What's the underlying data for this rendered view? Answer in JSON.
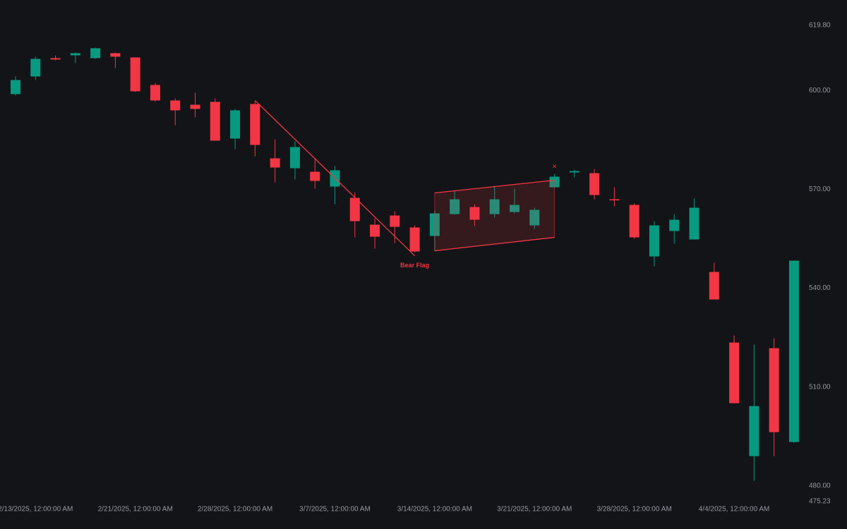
{
  "chart_data": {
    "type": "candlestick",
    "up_color": "#089981",
    "down_color": "#f23645",
    "x": [
      "2025-02-12",
      "2025-02-13",
      "2025-02-14",
      "2025-02-18",
      "2025-02-19",
      "2025-02-20",
      "2025-02-21",
      "2025-02-24",
      "2025-02-25",
      "2025-02-26",
      "2025-02-27",
      "2025-02-28",
      "2025-03-03",
      "2025-03-04",
      "2025-03-05",
      "2025-03-06",
      "2025-03-07",
      "2025-03-10",
      "2025-03-11",
      "2025-03-12",
      "2025-03-13",
      "2025-03-14",
      "2025-03-17",
      "2025-03-18",
      "2025-03-19",
      "2025-03-20",
      "2025-03-21",
      "2025-03-24",
      "2025-03-25",
      "2025-03-26",
      "2025-03-27",
      "2025-03-28",
      "2025-03-31",
      "2025-04-01",
      "2025-04-02",
      "2025-04-03",
      "2025-04-04",
      "2025-04-07",
      "2025-04-08",
      "2025-04-09"
    ],
    "open": [
      598.93,
      604.29,
      609.86,
      610.71,
      609.86,
      611.36,
      610.07,
      601.71,
      597.0,
      595.71,
      596.57,
      585.43,
      595.93,
      579.43,
      576.43,
      575.36,
      570.86,
      567.43,
      559.29,
      562.07,
      558.43,
      555.86,
      562.5,
      564.64,
      562.5,
      563.14,
      559.07,
      570.64,
      575.14,
      574.93,
      567.0,
      565.29,
      549.64,
      557.36,
      554.79,
      544.93,
      523.5,
      489.0,
      521.79,
      493.29
    ],
    "high": [
      604.29,
      610.29,
      610.71,
      611.57,
      613.07,
      611.57,
      610.07,
      602.36,
      597.64,
      599.36,
      597.64,
      594.43,
      596.79,
      585.21,
      584.57,
      579.21,
      577.07,
      569.14,
      561.21,
      563.36,
      559.07,
      563.57,
      569.57,
      565.5,
      571.07,
      570.21,
      564.43,
      574.71,
      576.0,
      576.21,
      570.64,
      565.71,
      560.36,
      562.5,
      567.21,
      547.71,
      525.64,
      522.86,
      524.79,
      548.36
    ],
    "low": [
      598.5,
      603.21,
      609.21,
      608.36,
      609.64,
      606.86,
      599.57,
      596.57,
      589.5,
      591.86,
      584.79,
      582.21,
      580.07,
      572.14,
      573.0,
      570.21,
      565.5,
      555.43,
      552.0,
      553.71,
      550.93,
      551.36,
      562.29,
      558.86,
      561.43,
      562.71,
      558.0,
      570.43,
      573.64,
      567.0,
      564.86,
      555.0,
      546.64,
      553.5,
      554.79,
      536.57,
      505.07,
      481.5,
      489.0,
      493.07
    ],
    "close": [
      603.21,
      609.64,
      609.43,
      611.36,
      612.86,
      610.29,
      599.79,
      597.0,
      594.0,
      594.43,
      584.79,
      594.0,
      583.5,
      576.64,
      582.86,
      572.57,
      575.79,
      560.36,
      555.64,
      558.64,
      551.14,
      562.71,
      567.0,
      560.79,
      567.0,
      565.29,
      563.79,
      573.86,
      575.57,
      568.29,
      566.79,
      555.43,
      559.07,
      560.79,
      564.43,
      536.57,
      505.07,
      504.21,
      496.29,
      548.36
    ],
    "ylim": [
      475.23,
      619.8
    ],
    "yticks": [
      {
        "value": 619.8,
        "label": "619.80"
      },
      {
        "value": 600,
        "label": "600.00"
      },
      {
        "value": 570,
        "label": "570.00"
      },
      {
        "value": 540,
        "label": "540.00"
      },
      {
        "value": 510,
        "label": "510.00"
      },
      {
        "value": 480,
        "label": "480.00"
      },
      {
        "value": 475.23,
        "label": "475.23"
      }
    ],
    "xticks": [
      {
        "value": "2025-02-13",
        "label": "2/13/2025, 12:00:00 AM"
      },
      {
        "value": "2025-02-21",
        "label": "2/21/2025, 12:00:00 AM"
      },
      {
        "value": "2025-02-28",
        "label": "2/28/2025, 12:00:00 AM"
      },
      {
        "value": "2025-03-07",
        "label": "3/7/2025, 12:00:00 AM"
      },
      {
        "value": "2025-03-14",
        "label": "3/14/2025, 12:00:00 AM"
      },
      {
        "value": "2025-03-21",
        "label": "3/21/2025, 12:00:00 AM"
      },
      {
        "value": "2025-03-28",
        "label": "3/28/2025, 12:00:00 AM"
      },
      {
        "value": "2025-04-04",
        "label": "4/4/2025, 12:00:00 AM"
      }
    ],
    "pattern": {
      "label": "Bear Flag",
      "color": "#f23645",
      "pole": {
        "x": [
          "2025-03-03",
          "2025-03-13"
        ],
        "y": [
          597.0,
          549.86
        ]
      },
      "flag_upper": {
        "x": [
          "2025-03-14",
          "2025-03-24"
        ],
        "y": [
          568.93,
          572.79
        ]
      },
      "flag_lower": {
        "x": [
          "2025-03-14",
          "2025-03-24"
        ],
        "y": [
          551.36,
          555.43
        ]
      },
      "marker": {
        "x": "2025-03-24",
        "y": 576.86,
        "symbol": "×"
      }
    }
  }
}
